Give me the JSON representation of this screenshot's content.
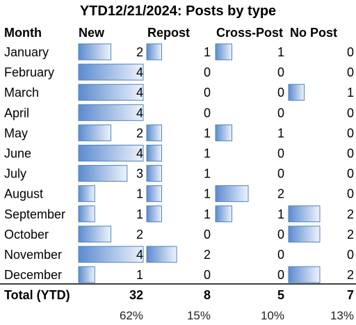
{
  "chart_data": {
    "type": "table",
    "title": "YTD12/21/2024: Posts by type",
    "row_header": "Month",
    "columns": [
      "New",
      "Repost",
      "Cross-Post",
      "No Post"
    ],
    "rows": [
      {
        "month": "January",
        "values": [
          2,
          1,
          1,
          0
        ]
      },
      {
        "month": "February",
        "values": [
          4,
          0,
          0,
          0
        ]
      },
      {
        "month": "March",
        "values": [
          4,
          0,
          0,
          1
        ]
      },
      {
        "month": "April",
        "values": [
          4,
          0,
          0,
          0
        ]
      },
      {
        "month": "May",
        "values": [
          2,
          1,
          1,
          0
        ]
      },
      {
        "month": "June",
        "values": [
          4,
          1,
          0,
          0
        ]
      },
      {
        "month": "July",
        "values": [
          3,
          1,
          0,
          0
        ]
      },
      {
        "month": "August",
        "values": [
          1,
          1,
          2,
          0
        ]
      },
      {
        "month": "September",
        "values": [
          1,
          1,
          1,
          2
        ]
      },
      {
        "month": "October",
        "values": [
          2,
          0,
          0,
          2
        ]
      },
      {
        "month": "November",
        "values": [
          4,
          2,
          0,
          0
        ]
      },
      {
        "month": "December",
        "values": [
          1,
          0,
          0,
          2
        ]
      }
    ],
    "total_label": "Total (YTD)",
    "totals": [
      32,
      8,
      5,
      7
    ],
    "percentages": [
      "62%",
      "15%",
      "10%",
      "13%"
    ],
    "bar_max": 4,
    "bar_color": "#4f81bd"
  }
}
